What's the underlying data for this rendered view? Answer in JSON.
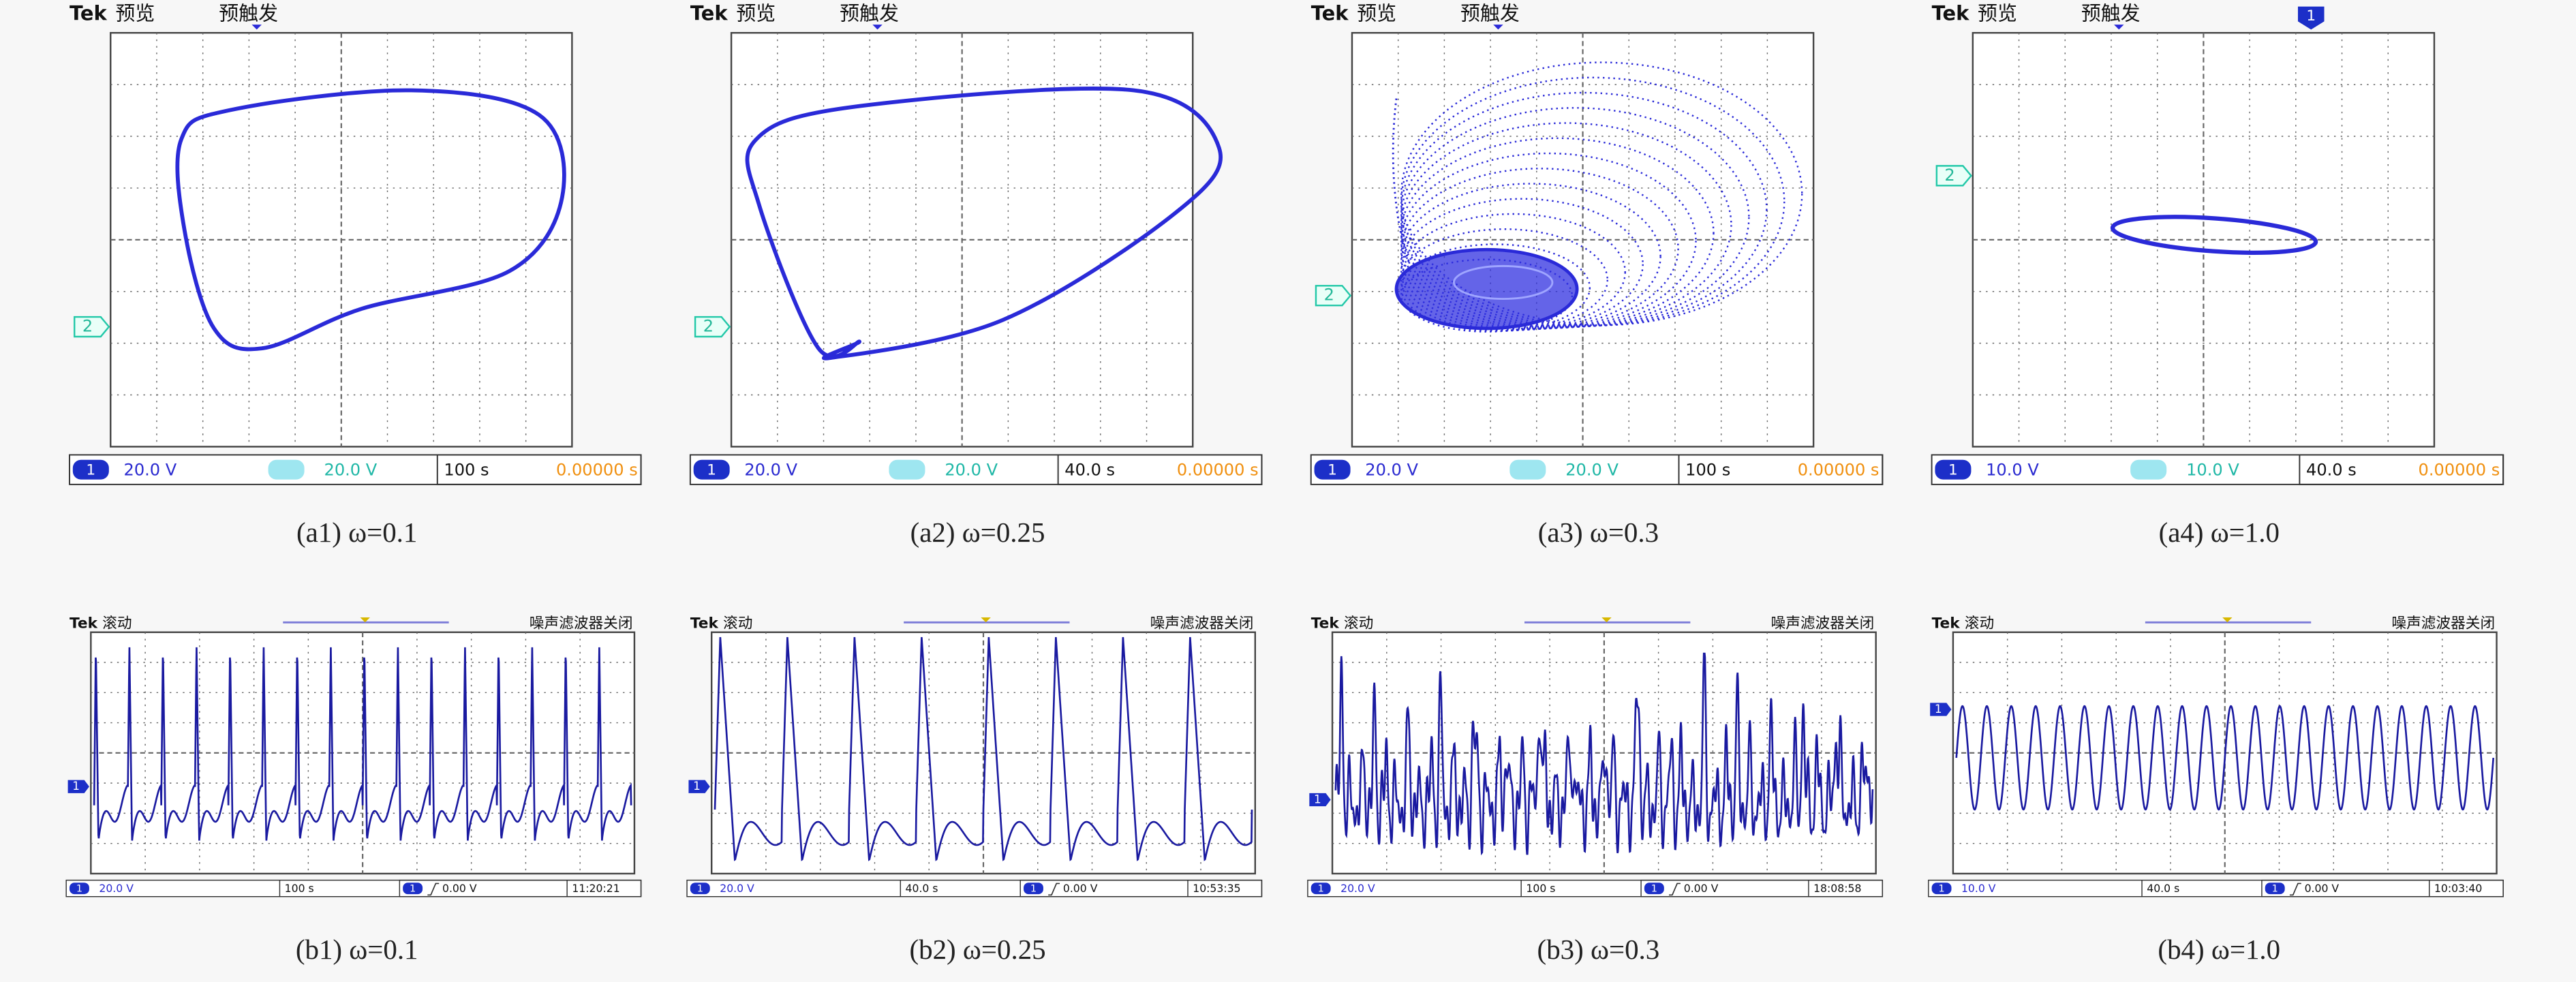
{
  "top": [
    {
      "brand": "Tek",
      "mode": "预览",
      "trigger": "预触发",
      "marker": "2",
      "ch1": "1",
      "ch1_scale": "20.0 V",
      "ch2_scale": "20.0 V",
      "timebase": "100 s",
      "time": "0.00000 s",
      "caption": "(a1) ω=0.1"
    },
    {
      "brand": "Tek",
      "mode": "预览",
      "trigger": "预触发",
      "marker": "2",
      "ch1": "1",
      "ch1_scale": "20.0 V",
      "ch2_scale": "20.0 V",
      "timebase": "40.0 s",
      "time": "0.00000 s",
      "caption": "(a2) ω=0.25"
    },
    {
      "brand": "Tek",
      "mode": "预览",
      "trigger": "预触发",
      "marker": "2",
      "ch1": "1",
      "ch1_scale": "20.0 V",
      "ch2_scale": "20.0 V",
      "timebase": "100 s",
      "time": "0.00000 s",
      "caption": "(a3) ω=0.3"
    },
    {
      "brand": "Tek",
      "mode": "预览",
      "trigger": "预触发",
      "marker": "2",
      "ch1": "1",
      "ch1_scale": "10.0 V",
      "ch2_scale": "10.0 V",
      "timebase": "40.0 s",
      "time": "0.00000 s",
      "caption": "(a4) ω=1.0"
    }
  ],
  "bottom": [
    {
      "brand": "Tek",
      "mode": "滚动",
      "filter": "噪声滤波器关闭",
      "marker": "1",
      "ch1": "1",
      "ch1_scale": "20.0 V",
      "timebase": "100 s",
      "trig_level": "0.00 V",
      "clock": "11:20:21",
      "caption": "(b1) ω=0.1"
    },
    {
      "brand": "Tek",
      "mode": "滚动",
      "filter": "噪声滤波器关闭",
      "marker": "1",
      "ch1": "1",
      "ch1_scale": "20.0 V",
      "timebase": "40.0 s",
      "trig_level": "0.00 V",
      "clock": "10:53:35",
      "caption": "(b2) ω=0.25"
    },
    {
      "brand": "Tek",
      "mode": "滚动",
      "filter": "噪声滤波器关闭",
      "marker": "1",
      "ch1": "1",
      "ch1_scale": "20.0 V",
      "timebase": "100 s",
      "trig_level": "0.00 V",
      "clock": "18:08:58",
      "caption": "(b3) ω=0.3"
    },
    {
      "brand": "Tek",
      "mode": "滚动",
      "filter": "噪声滤波器关闭",
      "marker": "1",
      "ch1": "1",
      "ch1_scale": "10.0 V",
      "timebase": "40.0 s",
      "trig_level": "0.00 V",
      "clock": "10:03:40",
      "caption": "(b4) ω=1.0"
    }
  ]
}
